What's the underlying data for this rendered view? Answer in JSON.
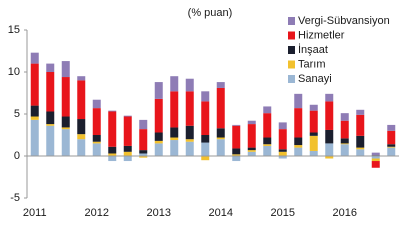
{
  "chart_data": {
    "type": "stacked_bar",
    "title": "(% puan)",
    "categories": [
      "2011",
      null,
      null,
      null,
      "2012",
      null,
      null,
      null,
      "2013",
      null,
      null,
      null,
      "2014",
      null,
      null,
      null,
      "2015",
      null,
      null,
      null,
      "2016",
      null,
      null,
      null
    ],
    "series": [
      {
        "name": "Sanayi",
        "color": "#9bb7d4",
        "values": [
          4.3,
          3.6,
          3.2,
          2.0,
          1.5,
          -0.6,
          -0.6,
          0.3,
          1.5,
          1.9,
          1.7,
          1.6,
          2.0,
          -0.6,
          0.5,
          1.2,
          -0.3,
          1.0,
          0.6,
          1.5,
          1.4,
          0.8,
          -0.3,
          1.0
        ]
      },
      {
        "name": "Tarım",
        "color": "#f2c12e",
        "values": [
          0.4,
          0.2,
          0.2,
          0.6,
          0.2,
          0.3,
          0.5,
          -0.2,
          0.3,
          0.3,
          0.3,
          -0.5,
          0.2,
          0.2,
          0.2,
          0.2,
          0.5,
          0.3,
          1.8,
          -0.3,
          0.1,
          0.2,
          -0.3,
          0.1
        ]
      },
      {
        "name": "İnşaat",
        "color": "#1b1f2e",
        "values": [
          1.3,
          1.5,
          1.3,
          1.8,
          0.8,
          0.8,
          0.7,
          0.4,
          1.0,
          1.2,
          1.6,
          0.9,
          1.1,
          0.7,
          0.3,
          0.8,
          0.3,
          0.9,
          0.4,
          1.6,
          0.6,
          1.4,
          0.1,
          0.3
        ]
      },
      {
        "name": "Hizmetler",
        "color": "#e8151b",
        "values": [
          5.0,
          4.7,
          4.7,
          4.6,
          3.2,
          4.2,
          3.5,
          2.5,
          4.0,
          4.3,
          4.1,
          4.0,
          4.8,
          2.7,
          2.8,
          2.9,
          2.4,
          3.5,
          2.6,
          3.4,
          2.1,
          2.5,
          -0.8,
          1.6
        ]
      },
      {
        "name": "Vergi-Sübvansiyon",
        "color": "#8e7cb5",
        "values": [
          1.3,
          1.0,
          1.9,
          0.5,
          1.0,
          0.1,
          0.1,
          1.1,
          2.0,
          1.8,
          1.5,
          1.2,
          0.7,
          0.1,
          0.4,
          0.8,
          0.8,
          1.7,
          0.7,
          0.9,
          0.9,
          0.6,
          0.3,
          0.7
        ]
      }
    ],
    "ylim": [
      -5,
      15
    ],
    "yticks": [
      -5,
      0,
      5,
      10,
      15
    ],
    "legend": "top-right"
  }
}
